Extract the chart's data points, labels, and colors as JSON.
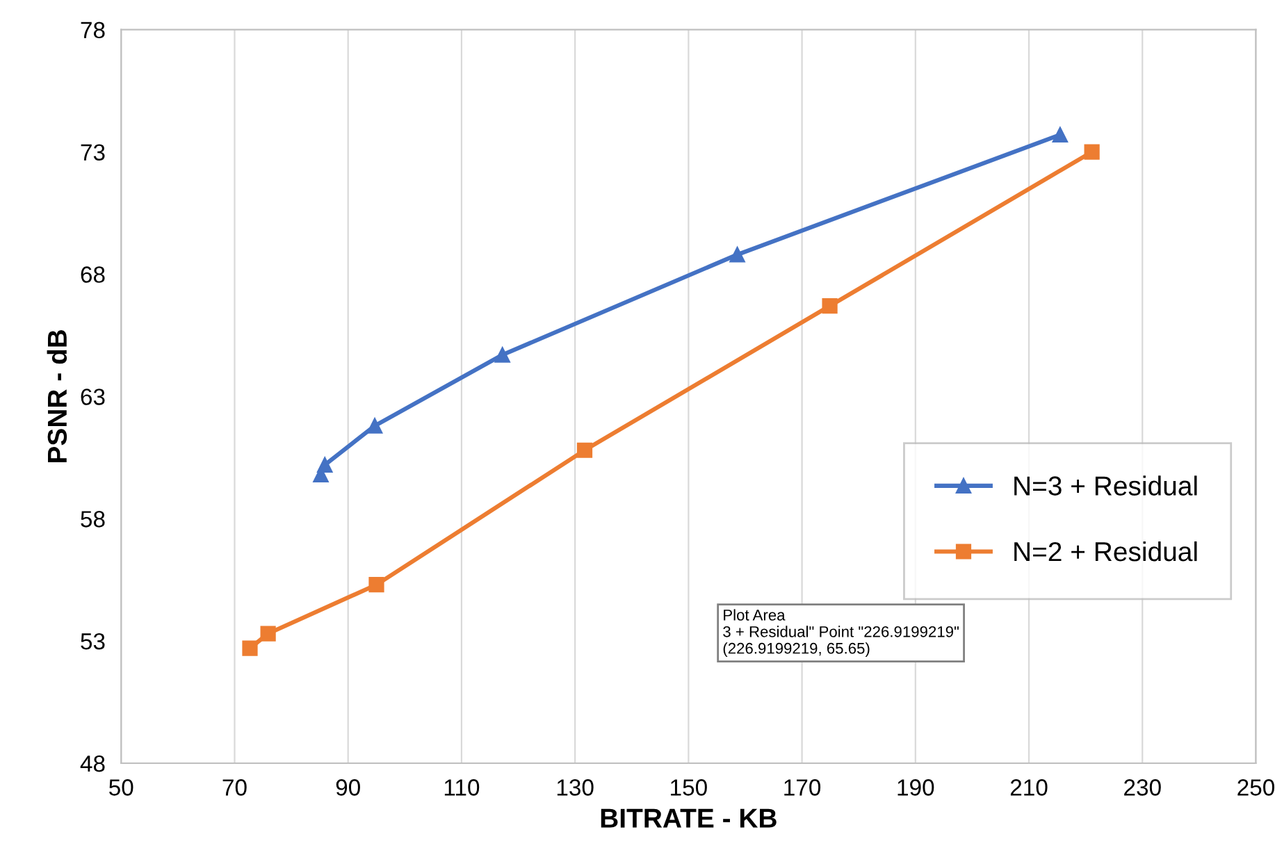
{
  "chart_data": {
    "type": "line",
    "xlabel": "BITRATE - KB",
    "ylabel": "PSNR - dB",
    "xlim": [
      50,
      250
    ],
    "xticks": [
      50,
      70,
      90,
      110,
      130,
      150,
      170,
      190,
      210,
      230,
      250
    ],
    "ylim": [
      48,
      78
    ],
    "yticks": [
      48,
      53,
      58,
      63,
      68,
      73,
      78
    ],
    "grid": "x",
    "legend": "right",
    "series": [
      {
        "name": "N=3 + Residual",
        "color": "#4472c4",
        "marker": "triangle",
        "x": [
          85.2,
          85.9,
          94.7,
          117.2,
          158.6,
          215.5
        ],
        "values": [
          59.8,
          60.2,
          61.8,
          64.7,
          68.8,
          73.7
        ]
      },
      {
        "name": "N=2 + Residual",
        "color": "#ed7d31",
        "marker": "square",
        "x": [
          72.7,
          75.9,
          95.0,
          131.7,
          174.9,
          221.1
        ],
        "values": [
          52.7,
          53.3,
          55.3,
          60.8,
          66.7,
          73.0
        ]
      }
    ],
    "annotations": [
      "Plot Area",
      "3 + Residual\" Point \"226.9199219\"",
      "(226.9199219, 65.65)"
    ]
  }
}
